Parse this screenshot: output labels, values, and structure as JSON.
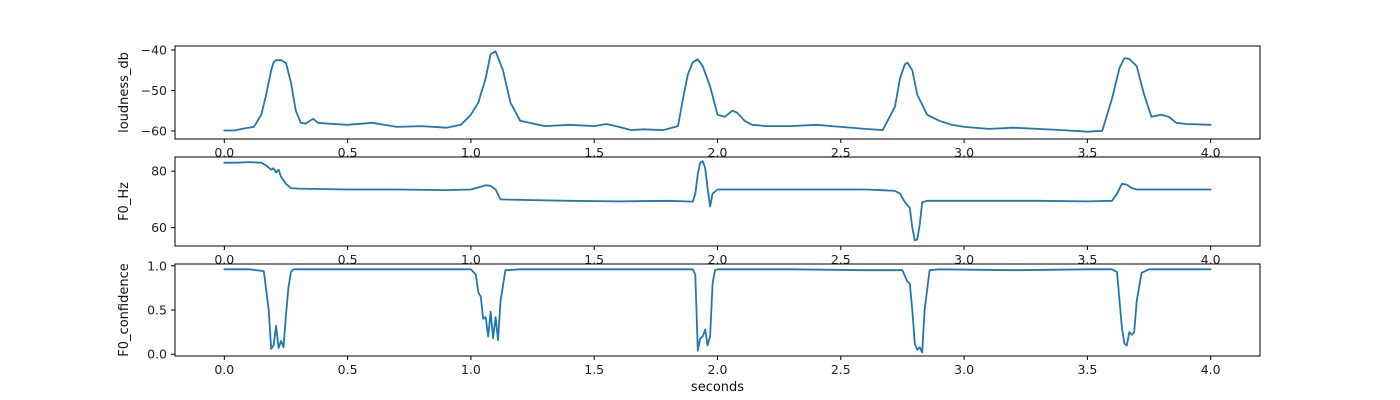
{
  "chart_data": [
    {
      "type": "line",
      "ylabel": "loudness_db",
      "xlim": [
        -0.2,
        4.2
      ],
      "ylim": [
        -62,
        -39
      ],
      "xticks": [
        "0.0",
        "0.5",
        "1.0",
        "1.5",
        "2.0",
        "2.5",
        "3.0",
        "3.5",
        "4.0"
      ],
      "yticks": [
        "-60",
        "-50",
        "-40"
      ],
      "series": [
        {
          "x": [
            0.0,
            0.04,
            0.08,
            0.12,
            0.15,
            0.17,
            0.19,
            0.2,
            0.21,
            0.23,
            0.25,
            0.27,
            0.29,
            0.31,
            0.33,
            0.36,
            0.38,
            0.42,
            0.5,
            0.6,
            0.7,
            0.8,
            0.9,
            0.96,
            1.0,
            1.03,
            1.06,
            1.08,
            1.1,
            1.13,
            1.16,
            1.2,
            1.3,
            1.4,
            1.5,
            1.55,
            1.6,
            1.65,
            1.7,
            1.78,
            1.84,
            1.86,
            1.88,
            1.9,
            1.92,
            1.94,
            1.97,
            2.0,
            2.03,
            2.06,
            2.08,
            2.11,
            2.14,
            2.2,
            2.3,
            2.4,
            2.5,
            2.6,
            2.67,
            2.72,
            2.74,
            2.76,
            2.77,
            2.79,
            2.81,
            2.85,
            2.9,
            2.95,
            3.0,
            3.1,
            3.2,
            3.3,
            3.4,
            3.5,
            3.56,
            3.6,
            3.63,
            3.65,
            3.67,
            3.7,
            3.73,
            3.76,
            3.8,
            3.83,
            3.86,
            3.9,
            4.0
          ],
          "values": [
            -59.9,
            -59.9,
            -59.4,
            -59.0,
            -56.0,
            -51.0,
            -45.0,
            -43.0,
            -42.5,
            -42.5,
            -43.2,
            -48.0,
            -55.0,
            -58.0,
            -58.2,
            -57.0,
            -58.0,
            -58.2,
            -58.5,
            -58.0,
            -59.0,
            -58.8,
            -59.2,
            -58.5,
            -56.0,
            -53.0,
            -47.0,
            -41.0,
            -40.3,
            -45.0,
            -53.0,
            -57.5,
            -58.8,
            -58.5,
            -58.8,
            -58.3,
            -59.0,
            -59.8,
            -59.6,
            -59.8,
            -58.8,
            -52.0,
            -46.0,
            -43.0,
            -42.3,
            -44.0,
            -49.0,
            -56.0,
            -56.5,
            -55.0,
            -55.5,
            -57.5,
            -58.5,
            -58.8,
            -58.8,
            -58.5,
            -59.0,
            -59.5,
            -59.8,
            -54.0,
            -47.0,
            -43.5,
            -43.1,
            -45.0,
            -51.0,
            -56.0,
            -57.5,
            -58.5,
            -59.0,
            -59.5,
            -59.2,
            -59.5,
            -59.8,
            -60.2,
            -60.0,
            -52.0,
            -44.5,
            -42.0,
            -42.2,
            -44.0,
            -51.0,
            -56.5,
            -56.0,
            -56.5,
            -58.0,
            -58.3,
            -58.5
          ]
        }
      ]
    },
    {
      "type": "line",
      "ylabel": "F0_Hz",
      "xlim": [
        -0.2,
        4.2
      ],
      "ylim": [
        53.5,
        85
      ],
      "xticks": [
        "0.0",
        "0.5",
        "1.0",
        "1.5",
        "2.0",
        "2.5",
        "3.0",
        "3.5",
        "4.0"
      ],
      "yticks": [
        "60",
        "80"
      ],
      "series": [
        {
          "x": [
            0.0,
            0.05,
            0.1,
            0.15,
            0.17,
            0.19,
            0.2,
            0.21,
            0.22,
            0.23,
            0.25,
            0.27,
            0.3,
            0.5,
            0.7,
            0.9,
            1.0,
            1.04,
            1.06,
            1.08,
            1.1,
            1.12,
            1.2,
            1.4,
            1.6,
            1.8,
            1.9,
            1.91,
            1.92,
            1.93,
            1.94,
            1.95,
            1.96,
            1.97,
            1.98,
            2.0,
            2.2,
            2.4,
            2.6,
            2.68,
            2.72,
            2.74,
            2.76,
            2.78,
            2.79,
            2.8,
            2.81,
            2.82,
            2.83,
            2.85,
            2.9,
            3.1,
            3.3,
            3.5,
            3.6,
            3.62,
            3.64,
            3.66,
            3.68,
            3.7,
            3.8,
            4.0
          ],
          "values": [
            83.0,
            83.0,
            83.2,
            83.0,
            82.0,
            80.5,
            81.0,
            79.5,
            80.5,
            78.0,
            75.5,
            74.0,
            73.8,
            73.5,
            73.5,
            73.3,
            73.5,
            74.5,
            75.0,
            74.8,
            73.5,
            70.0,
            69.8,
            69.5,
            69.3,
            69.5,
            69.2,
            72.0,
            79.0,
            83.0,
            83.5,
            81.0,
            74.0,
            67.5,
            72.0,
            73.5,
            73.5,
            73.5,
            73.5,
            73.2,
            73.0,
            72.0,
            69.0,
            67.0,
            60.0,
            55.5,
            55.8,
            61.0,
            69.0,
            69.5,
            69.5,
            69.5,
            69.5,
            69.3,
            69.5,
            72.0,
            75.5,
            75.2,
            74.0,
            73.5,
            73.5,
            73.5
          ]
        }
      ]
    },
    {
      "type": "line",
      "ylabel": "F0_confidence",
      "xlabel": "seconds",
      "xlim": [
        -0.2,
        4.2
      ],
      "ylim": [
        -0.02,
        1.02
      ],
      "xticks": [
        "0.0",
        "0.5",
        "1.0",
        "1.5",
        "2.0",
        "2.5",
        "3.0",
        "3.5",
        "4.0"
      ],
      "yticks": [
        "0.0",
        "0.5",
        "1.0"
      ],
      "series": [
        {
          "x": [
            0.0,
            0.1,
            0.16,
            0.18,
            0.19,
            0.2,
            0.21,
            0.22,
            0.23,
            0.24,
            0.25,
            0.26,
            0.27,
            0.28,
            0.3,
            0.5,
            0.8,
            1.0,
            1.02,
            1.03,
            1.04,
            1.05,
            1.06,
            1.07,
            1.08,
            1.09,
            1.1,
            1.11,
            1.12,
            1.14,
            1.2,
            1.5,
            1.8,
            1.9,
            1.91,
            1.92,
            1.93,
            1.94,
            1.95,
            1.96,
            1.97,
            1.98,
            1.99,
            2.0,
            2.3,
            2.6,
            2.75,
            2.77,
            2.78,
            2.79,
            2.8,
            2.81,
            2.82,
            2.83,
            2.84,
            2.86,
            2.9,
            3.2,
            3.5,
            3.6,
            3.62,
            3.64,
            3.65,
            3.66,
            3.67,
            3.68,
            3.69,
            3.7,
            3.72,
            3.75,
            3.8,
            4.0
          ],
          "values": [
            0.96,
            0.96,
            0.94,
            0.5,
            0.06,
            0.1,
            0.32,
            0.07,
            0.15,
            0.08,
            0.45,
            0.75,
            0.93,
            0.96,
            0.96,
            0.96,
            0.96,
            0.96,
            0.9,
            0.7,
            0.65,
            0.4,
            0.42,
            0.2,
            0.48,
            0.18,
            0.42,
            0.16,
            0.6,
            0.95,
            0.96,
            0.96,
            0.96,
            0.96,
            0.9,
            0.04,
            0.18,
            0.2,
            0.28,
            0.1,
            0.2,
            0.8,
            0.95,
            0.96,
            0.96,
            0.95,
            0.95,
            0.82,
            0.8,
            0.5,
            0.12,
            0.05,
            0.08,
            0.02,
            0.5,
            0.95,
            0.96,
            0.95,
            0.96,
            0.96,
            0.93,
            0.3,
            0.12,
            0.1,
            0.25,
            0.22,
            0.25,
            0.6,
            0.92,
            0.96,
            0.96,
            0.96
          ]
        }
      ]
    }
  ],
  "colors": {
    "line": "#1f77b4"
  }
}
